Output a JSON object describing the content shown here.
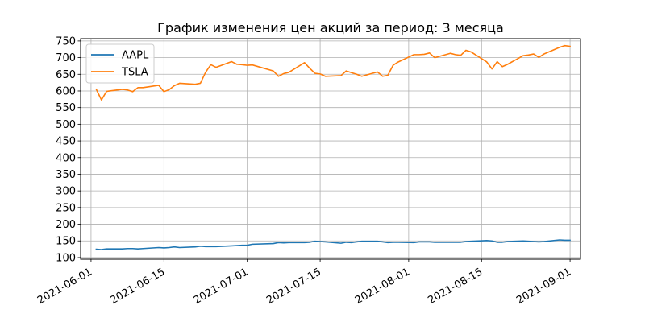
{
  "chart_data": {
    "type": "line",
    "title": "График изменения цен акций за период: 3 месяца",
    "xlabel": "",
    "ylabel": "",
    "x_axis_type": "date",
    "xlim": [
      "2021-05-30",
      "2021-09-03"
    ],
    "ylim": [
      95,
      757
    ],
    "y_ticks": [
      100,
      150,
      200,
      250,
      300,
      350,
      400,
      450,
      500,
      550,
      600,
      650,
      700,
      750
    ],
    "x_ticks": [
      "2021-06-01",
      "2021-06-15",
      "2021-07-01",
      "2021-07-15",
      "2021-08-01",
      "2021-08-15",
      "2021-09-01"
    ],
    "x_tick_rotation_deg": 30,
    "grid": true,
    "legend": {
      "placement": "top-left",
      "entries": [
        "AAPL",
        "TSLA"
      ]
    },
    "series": [
      {
        "name": "AAPL",
        "color": "#1f77b4",
        "points": [
          [
            "2021-06-02",
            125
          ],
          [
            "2021-06-03",
            124
          ],
          [
            "2021-06-04",
            126
          ],
          [
            "2021-06-07",
            126
          ],
          [
            "2021-06-08",
            127
          ],
          [
            "2021-06-09",
            127
          ],
          [
            "2021-06-10",
            126
          ],
          [
            "2021-06-11",
            127
          ],
          [
            "2021-06-14",
            130
          ],
          [
            "2021-06-15",
            129
          ],
          [
            "2021-06-16",
            130
          ],
          [
            "2021-06-17",
            132
          ],
          [
            "2021-06-18",
            130
          ],
          [
            "2021-06-21",
            132
          ],
          [
            "2021-06-22",
            134
          ],
          [
            "2021-06-23",
            133
          ],
          [
            "2021-06-24",
            133
          ],
          [
            "2021-06-25",
            133
          ],
          [
            "2021-06-28",
            135
          ],
          [
            "2021-06-29",
            136
          ],
          [
            "2021-06-30",
            137
          ],
          [
            "2021-07-01",
            137
          ],
          [
            "2021-07-02",
            140
          ],
          [
            "2021-07-06",
            142
          ],
          [
            "2021-07-07",
            145
          ],
          [
            "2021-07-08",
            144
          ],
          [
            "2021-07-09",
            145
          ],
          [
            "2021-07-12",
            145
          ],
          [
            "2021-07-13",
            146
          ],
          [
            "2021-07-14",
            149
          ],
          [
            "2021-07-15",
            148
          ],
          [
            "2021-07-16",
            147
          ],
          [
            "2021-07-19",
            143
          ],
          [
            "2021-07-20",
            146
          ],
          [
            "2021-07-21",
            145
          ],
          [
            "2021-07-22",
            147
          ],
          [
            "2021-07-23",
            149
          ],
          [
            "2021-07-26",
            149
          ],
          [
            "2021-07-27",
            147
          ],
          [
            "2021-07-28",
            145
          ],
          [
            "2021-07-29",
            146
          ],
          [
            "2021-07-30",
            146
          ],
          [
            "2021-08-02",
            145
          ],
          [
            "2021-08-03",
            147
          ],
          [
            "2021-08-04",
            147
          ],
          [
            "2021-08-05",
            147
          ],
          [
            "2021-08-06",
            146
          ],
          [
            "2021-08-09",
            146
          ],
          [
            "2021-08-10",
            146
          ],
          [
            "2021-08-11",
            146
          ],
          [
            "2021-08-12",
            148
          ],
          [
            "2021-08-13",
            149
          ],
          [
            "2021-08-16",
            151
          ],
          [
            "2021-08-17",
            150
          ],
          [
            "2021-08-18",
            146
          ],
          [
            "2021-08-19",
            146
          ],
          [
            "2021-08-20",
            148
          ],
          [
            "2021-08-23",
            150
          ],
          [
            "2021-08-24",
            149
          ],
          [
            "2021-08-25",
            148
          ],
          [
            "2021-08-26",
            147
          ],
          [
            "2021-08-27",
            148
          ],
          [
            "2021-08-30",
            153
          ],
          [
            "2021-08-31",
            152
          ],
          [
            "2021-09-01",
            152
          ]
        ]
      },
      {
        "name": "TSLA",
        "color": "#ff7f0e",
        "points": [
          [
            "2021-06-02",
            605
          ],
          [
            "2021-06-03",
            573
          ],
          [
            "2021-06-04",
            599
          ],
          [
            "2021-06-07",
            605
          ],
          [
            "2021-06-08",
            603
          ],
          [
            "2021-06-09",
            598
          ],
          [
            "2021-06-10",
            610
          ],
          [
            "2021-06-11",
            610
          ],
          [
            "2021-06-14",
            617
          ],
          [
            "2021-06-15",
            598
          ],
          [
            "2021-06-16",
            604
          ],
          [
            "2021-06-17",
            616
          ],
          [
            "2021-06-18",
            623
          ],
          [
            "2021-06-21",
            620
          ],
          [
            "2021-06-22",
            623
          ],
          [
            "2021-06-23",
            656
          ],
          [
            "2021-06-24",
            679
          ],
          [
            "2021-06-25",
            671
          ],
          [
            "2021-06-28",
            688
          ],
          [
            "2021-06-29",
            680
          ],
          [
            "2021-06-30",
            679
          ],
          [
            "2021-07-01",
            677
          ],
          [
            "2021-07-02",
            678
          ],
          [
            "2021-07-06",
            660
          ],
          [
            "2021-07-07",
            644
          ],
          [
            "2021-07-08",
            652
          ],
          [
            "2021-07-09",
            656
          ],
          [
            "2021-07-12",
            685
          ],
          [
            "2021-07-13",
            668
          ],
          [
            "2021-07-14",
            653
          ],
          [
            "2021-07-15",
            651
          ],
          [
            "2021-07-16",
            644
          ],
          [
            "2021-07-19",
            646
          ],
          [
            "2021-07-20",
            660
          ],
          [
            "2021-07-21",
            655
          ],
          [
            "2021-07-22",
            650
          ],
          [
            "2021-07-23",
            644
          ],
          [
            "2021-07-26",
            657
          ],
          [
            "2021-07-27",
            644
          ],
          [
            "2021-07-28",
            647
          ],
          [
            "2021-07-29",
            677
          ],
          [
            "2021-07-30",
            687
          ],
          [
            "2021-08-02",
            709
          ],
          [
            "2021-08-03",
            709
          ],
          [
            "2021-08-04",
            710
          ],
          [
            "2021-08-05",
            714
          ],
          [
            "2021-08-06",
            700
          ],
          [
            "2021-08-09",
            713
          ],
          [
            "2021-08-10",
            709
          ],
          [
            "2021-08-11",
            707
          ],
          [
            "2021-08-12",
            722
          ],
          [
            "2021-08-13",
            717
          ],
          [
            "2021-08-16",
            687
          ],
          [
            "2021-08-17",
            666
          ],
          [
            "2021-08-18",
            688
          ],
          [
            "2021-08-19",
            673
          ],
          [
            "2021-08-20",
            680
          ],
          [
            "2021-08-23",
            706
          ],
          [
            "2021-08-24",
            708
          ],
          [
            "2021-08-25",
            711
          ],
          [
            "2021-08-26",
            701
          ],
          [
            "2021-08-27",
            711
          ],
          [
            "2021-08-30",
            731
          ],
          [
            "2021-08-31",
            736
          ],
          [
            "2021-09-01",
            734
          ]
        ]
      }
    ]
  }
}
